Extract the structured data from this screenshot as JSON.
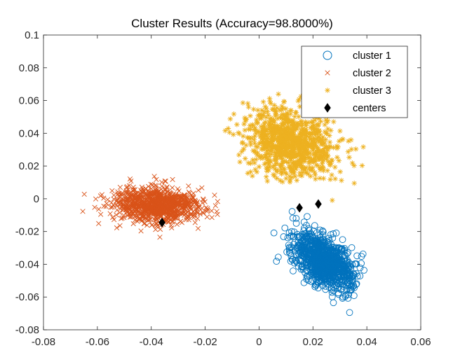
{
  "chart_data": {
    "type": "scatter",
    "title": "Cluster Results (Accuracy=98.8000%)",
    "xlabel": "",
    "ylabel": "",
    "xlim": [
      -0.08,
      0.06
    ],
    "ylim": [
      -0.08,
      0.1
    ],
    "x_ticks": [
      -0.08,
      -0.06,
      -0.04,
      -0.02,
      0,
      0.02,
      0.04,
      0.06
    ],
    "x_tick_labels": [
      "-0.08",
      "-0.06",
      "-0.04",
      "-0.02",
      "0",
      "0.02",
      "0.04",
      "0.06"
    ],
    "y_ticks": [
      -0.08,
      -0.06,
      -0.04,
      -0.02,
      0,
      0.02,
      0.04,
      0.06,
      0.08,
      0.1
    ],
    "y_tick_labels": [
      "-0.08",
      "-0.06",
      "-0.04",
      "-0.02",
      "0",
      "0.02",
      "0.04",
      "0.06",
      "0.08",
      "0.1"
    ],
    "grid": false,
    "legend_position": "top-right",
    "series": [
      {
        "name": "cluster 1",
        "marker": "circle",
        "color": "#0072BD",
        "distribution": {
          "center": [
            0.024,
            -0.038
          ],
          "spread": [
            0.0055,
            0.0085
          ],
          "correlation": -0.5,
          "count": 1000,
          "x_range": [
            -0.01,
            0.043
          ],
          "y_range": [
            -0.078,
            -0.001
          ]
        }
      },
      {
        "name": "cluster 2",
        "marker": "x",
        "color": "#D95319",
        "distribution": {
          "center": [
            -0.038,
            -0.004
          ],
          "spread": [
            0.008,
            0.0055
          ],
          "correlation": -0.1,
          "count": 1000,
          "x_range": [
            -0.067,
            -0.015
          ],
          "y_range": [
            -0.047,
            0.032
          ]
        }
      },
      {
        "name": "cluster 3",
        "marker": "asterisk",
        "color": "#EDB120",
        "distribution": {
          "center": [
            0.012,
            0.035
          ],
          "spread": [
            0.0085,
            0.0105
          ],
          "correlation": -0.2,
          "count": 1000,
          "x_range": [
            -0.02,
            0.046
          ],
          "y_range": [
            -0.003,
            0.087
          ]
        }
      },
      {
        "name": "centers",
        "marker": "diamond",
        "color": "#000000",
        "points": [
          [
            -0.036,
            -0.0145
          ],
          [
            0.015,
            -0.0055
          ],
          [
            0.022,
            -0.0032
          ]
        ]
      }
    ]
  }
}
